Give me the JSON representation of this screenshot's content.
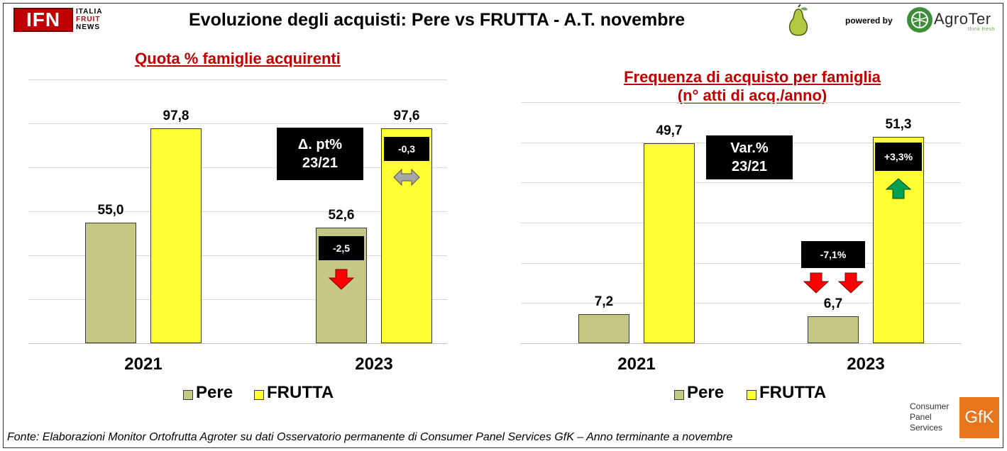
{
  "header": {
    "title": "Evoluzione degli acquisti: Pere vs FRUTTA  - A.T. novembre",
    "logo_ifn": "IFN",
    "logo_ifn_words": [
      "ITALIA",
      "FRUIT",
      "NEWS"
    ],
    "powered_by": "powered by",
    "brand": "AgroTer",
    "brand_tagline": "think fresh"
  },
  "colors": {
    "pere": "#c4c884",
    "frutta": "#ffff33",
    "title_red": "#c00000",
    "arrow_down": "#ff0000",
    "arrow_up": "#00a050",
    "arrow_neutral": "#a6a6a6"
  },
  "chart_data": [
    {
      "type": "bar",
      "title": "Quota % famiglie acquirenti",
      "categories": [
        "2021",
        "2023"
      ],
      "series": [
        {
          "name": "Pere",
          "values": [
            55.0,
            52.6
          ],
          "labels": [
            "55,0",
            "52,6"
          ]
        },
        {
          "name": "FRUTTA",
          "values": [
            97.8,
            97.6
          ],
          "labels": [
            "97,8",
            "97,6"
          ]
        }
      ],
      "ylim": [
        0,
        120
      ],
      "grid": true,
      "legend": "bottom",
      "annotations": {
        "box_label": "Δ. pt%\n23/21",
        "pere_change": "-2,5",
        "pere_trend": "down",
        "frutta_change": "-0,3",
        "frutta_trend": "stable"
      }
    },
    {
      "type": "bar",
      "title": "Frequenza di acquisto per famiglia\n(n° atti di acq./anno)",
      "categories": [
        "2021",
        "2023"
      ],
      "series": [
        {
          "name": "Pere",
          "values": [
            7.2,
            6.7
          ],
          "labels": [
            "7,2",
            "6,7"
          ]
        },
        {
          "name": "FRUTTA",
          "values": [
            49.7,
            51.3
          ],
          "labels": [
            "49,7",
            "51,3"
          ]
        }
      ],
      "ylim": [
        0,
        60
      ],
      "grid": true,
      "legend": "bottom",
      "annotations": {
        "box_label": "Var.%\n23/21",
        "pere_change": "-7,1%",
        "pere_trend": "down",
        "frutta_change": "+3,3%",
        "frutta_trend": "up"
      }
    }
  ],
  "footer": {
    "source": "Fonte: Elaborazioni Monitor Ortofrutta Agroter su dati Osservatorio permanente di Consumer Panel Services GfK  – Anno terminante a novembre",
    "gfk_text": [
      "Consumer",
      "Panel",
      "Services"
    ],
    "gfk_logo": "GfK"
  }
}
